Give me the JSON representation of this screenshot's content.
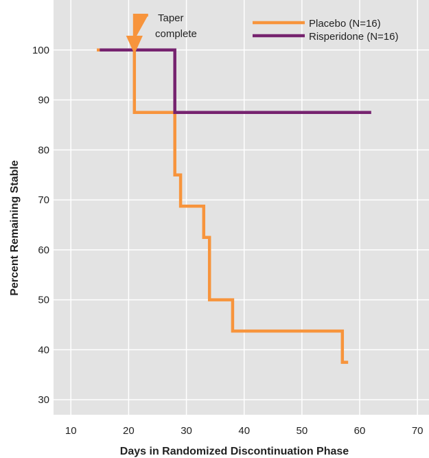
{
  "chart_data": {
    "type": "line",
    "step": true,
    "title": "",
    "xlabel": "Days in Randomized Discontinuation Phase",
    "ylabel": "Percent Remaining Stable",
    "xlim": [
      7,
      72
    ],
    "ylim": [
      27,
      110
    ],
    "xticks": [
      10,
      20,
      30,
      40,
      50,
      60,
      70
    ],
    "yticks": [
      30,
      40,
      50,
      60,
      70,
      80,
      90,
      100
    ],
    "grid": true,
    "legend_position": "top-right",
    "series": [
      {
        "name": "Placebo (N=16)",
        "color": "#f7943c",
        "points": [
          [
            14.5,
            100
          ],
          [
            21,
            100
          ],
          [
            21,
            87.5
          ],
          [
            28,
            87.5
          ],
          [
            28,
            75
          ],
          [
            29,
            75
          ],
          [
            29,
            68.75
          ],
          [
            33,
            68.75
          ],
          [
            33,
            62.5
          ],
          [
            34,
            62.5
          ],
          [
            34,
            50
          ],
          [
            38,
            50
          ],
          [
            38,
            43.75
          ],
          [
            57,
            43.75
          ],
          [
            57,
            37.5
          ],
          [
            58,
            37.5
          ]
        ]
      },
      {
        "name": "Risperidone (N=16)",
        "color": "#76236f",
        "points": [
          [
            15,
            100
          ],
          [
            28,
            100
          ],
          [
            28,
            87.5
          ],
          [
            62,
            87.5
          ]
        ]
      }
    ],
    "annotations": [
      {
        "text_lines": [
          "Taper",
          "complete"
        ],
        "x": 21,
        "color": "#f7943c"
      }
    ]
  }
}
